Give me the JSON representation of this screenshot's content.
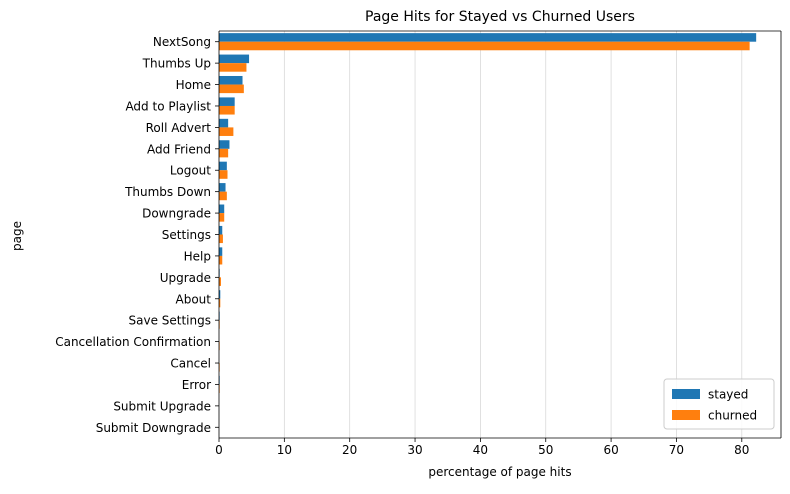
{
  "chart_data": {
    "type": "bar",
    "orientation": "horizontal",
    "title": "Page Hits for Stayed vs Churned Users",
    "xlabel": "percentage of page hits",
    "ylabel": "page",
    "xlim": [
      0,
      86
    ],
    "xticks": [
      "0",
      "10",
      "20",
      "30",
      "40",
      "50",
      "60",
      "70",
      "80"
    ],
    "grid": "x",
    "legend_position": "lower-right",
    "categories": [
      "NextSong",
      "Thumbs Up",
      "Home",
      "Add to Playlist",
      "Roll Advert",
      "Add Friend",
      "Logout",
      "Thumbs Down",
      "Downgrade",
      "Settings",
      "Help",
      "Upgrade",
      "About",
      "Save Settings",
      "Cancellation Confirmation",
      "Cancel",
      "Error",
      "Submit Upgrade",
      "Submit Downgrade"
    ],
    "series": [
      {
        "name": "stayed",
        "color": "#1f77b4",
        "values": [
          82.2,
          4.6,
          3.6,
          2.4,
          1.4,
          1.6,
          1.2,
          1.0,
          0.8,
          0.5,
          0.5,
          0.1,
          0.2,
          0.1,
          0.0,
          0.0,
          0.1,
          0.0,
          0.0
        ]
      },
      {
        "name": "churned",
        "color": "#ff7f0e",
        "values": [
          81.2,
          4.2,
          3.8,
          2.4,
          2.2,
          1.4,
          1.3,
          1.2,
          0.8,
          0.6,
          0.5,
          0.3,
          0.2,
          0.1,
          0.1,
          0.1,
          0.1,
          0.0,
          0.0
        ]
      }
    ]
  }
}
